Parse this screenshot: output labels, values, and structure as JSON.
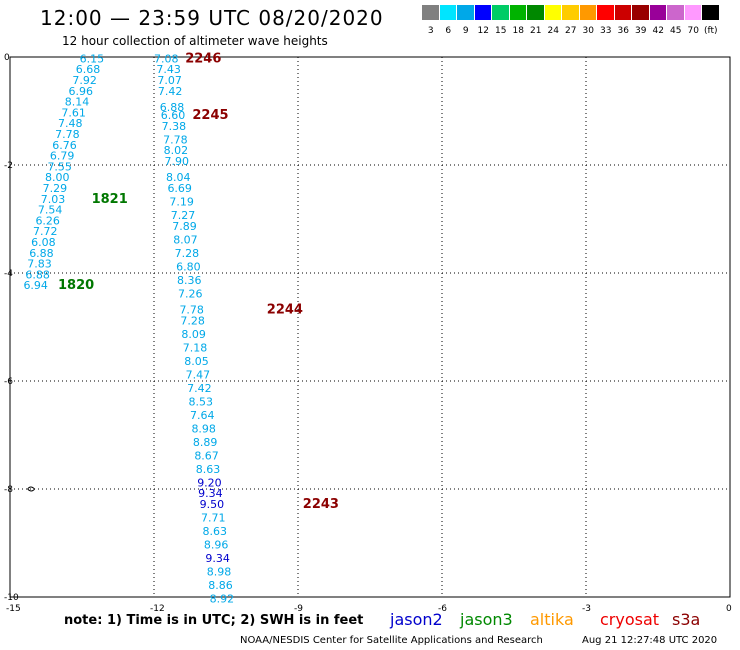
{
  "title": "12:00 — 23:59 UTC 08/20/2020",
  "subtitle": "12 hour collection of altimeter wave heights",
  "colorbar": {
    "labels": [
      "3",
      "6",
      "9",
      "12",
      "15",
      "18",
      "21",
      "24",
      "27",
      "30",
      "33",
      "36",
      "39",
      "42",
      "45",
      "70",
      "(ft)"
    ],
    "colors": [
      "#808080",
      "#00e5ff",
      "#00a8e8",
      "#0000ff",
      "#00cc66",
      "#00b300",
      "#008800",
      "#ffff00",
      "#ffcc00",
      "#ff9900",
      "#ff0000",
      "#cc0000",
      "#990000",
      "#990099",
      "#cc66cc",
      "#ff99ff",
      "#000000"
    ]
  },
  "map": {
    "xlim": [
      -15,
      0
    ],
    "ylim": [
      -10,
      0
    ],
    "x_ticks": [
      "-15",
      "-12",
      "-9",
      "-6",
      "-3",
      "0"
    ],
    "y_ticks": [
      "0",
      "-2",
      "-4",
      "-6",
      "-8",
      "-10"
    ]
  },
  "chart_data": {
    "type": "scatter",
    "xlim": [
      -15,
      0
    ],
    "ylim": [
      -10,
      0
    ],
    "grid": true,
    "passes": [
      {
        "id": "2246",
        "label_color": "#8b0000",
        "label_lon": -11.35,
        "label_lat": -0.1,
        "points": [
          {
            "lon": -12.0,
            "lat": -0.1,
            "swh": "7.08",
            "color": "#00a8e8"
          },
          {
            "lon": -11.95,
            "lat": -0.3,
            "swh": "7.43",
            "color": "#00a8e8"
          },
          {
            "lon": -11.93,
            "lat": -0.5,
            "swh": "7.07",
            "color": "#00a8e8"
          },
          {
            "lon": -11.92,
            "lat": -0.7,
            "swh": "7.42",
            "color": "#00a8e8"
          },
          {
            "lon": -11.88,
            "lat": -1.0,
            "swh": "6.88",
            "color": "#00a8e8"
          }
        ]
      },
      {
        "id": "2245",
        "label_color": "#8b0000",
        "label_lon": -11.2,
        "label_lat": -1.15,
        "points": [
          {
            "lon": -11.86,
            "lat": -1.15,
            "swh": "6.60",
            "color": "#00a8e8"
          },
          {
            "lon": -11.84,
            "lat": -1.35,
            "swh": "7.38",
            "color": "#00a8e8"
          },
          {
            "lon": -11.81,
            "lat": -1.6,
            "swh": "7.78",
            "color": "#00a8e8"
          },
          {
            "lon": -11.8,
            "lat": -1.8,
            "swh": "8.02",
            "color": "#00a8e8"
          },
          {
            "lon": -11.78,
            "lat": -2.0,
            "swh": "7.90",
            "color": "#00a8e8"
          },
          {
            "lon": -11.75,
            "lat": -2.3,
            "swh": "8.04",
            "color": "#00a8e8"
          },
          {
            "lon": -11.72,
            "lat": -2.5,
            "swh": "6.69",
            "color": "#00a8e8"
          },
          {
            "lon": -11.68,
            "lat": -2.75,
            "swh": "7.19",
            "color": "#00a8e8"
          },
          {
            "lon": -11.65,
            "lat": -3.0,
            "swh": "7.27",
            "color": "#00a8e8"
          },
          {
            "lon": -11.62,
            "lat": -3.2,
            "swh": "7.89",
            "color": "#00a8e8"
          },
          {
            "lon": -11.6,
            "lat": -3.45,
            "swh": "8.07",
            "color": "#00a8e8"
          },
          {
            "lon": -11.57,
            "lat": -3.7,
            "swh": "7.28",
            "color": "#00a8e8"
          },
          {
            "lon": -11.54,
            "lat": -3.95,
            "swh": "6.80",
            "color": "#00a8e8"
          },
          {
            "lon": -11.52,
            "lat": -4.2,
            "swh": "8.36",
            "color": "#00a8e8"
          },
          {
            "lon": -11.5,
            "lat": -4.45,
            "swh": "7.26",
            "color": "#00a8e8"
          }
        ]
      },
      {
        "id": "2244",
        "label_color": "#8b0000",
        "label_lon": -9.65,
        "label_lat": -4.75,
        "points": [
          {
            "lon": -11.47,
            "lat": -4.75,
            "swh": "7.78",
            "color": "#00a8e8"
          },
          {
            "lon": -11.45,
            "lat": -4.95,
            "swh": "7.28",
            "color": "#00a8e8"
          },
          {
            "lon": -11.43,
            "lat": -5.2,
            "swh": "8.09",
            "color": "#00a8e8"
          },
          {
            "lon": -11.4,
            "lat": -5.45,
            "swh": "7.18",
            "color": "#00a8e8"
          },
          {
            "lon": -11.37,
            "lat": -5.7,
            "swh": "8.05",
            "color": "#00a8e8"
          },
          {
            "lon": -11.34,
            "lat": -5.95,
            "swh": "7.47",
            "color": "#00a8e8"
          },
          {
            "lon": -11.31,
            "lat": -6.2,
            "swh": "7.42",
            "color": "#00a8e8"
          },
          {
            "lon": -11.28,
            "lat": -6.45,
            "swh": "8.53",
            "color": "#00a8e8"
          },
          {
            "lon": -11.25,
            "lat": -6.7,
            "swh": "7.64",
            "color": "#00a8e8"
          },
          {
            "lon": -11.22,
            "lat": -6.95,
            "swh": "8.98",
            "color": "#00a8e8"
          },
          {
            "lon": -11.19,
            "lat": -7.2,
            "swh": "8.89",
            "color": "#00a8e8"
          },
          {
            "lon": -11.16,
            "lat": -7.45,
            "swh": "8.67",
            "color": "#00a8e8"
          },
          {
            "lon": -11.13,
            "lat": -7.7,
            "swh": "8.63",
            "color": "#00a8e8"
          },
          {
            "lon": -11.1,
            "lat": -7.95,
            "swh": "9.20",
            "color": "#0000cc"
          },
          {
            "lon": -11.08,
            "lat": -8.15,
            "swh": "9.34",
            "color": "#0000cc"
          }
        ]
      },
      {
        "id": "2243",
        "label_color": "#8b0000",
        "label_lon": -8.9,
        "label_lat": -8.35,
        "points": [
          {
            "lon": -11.05,
            "lat": -8.35,
            "swh": "9.50",
            "color": "#0000cc"
          },
          {
            "lon": -11.02,
            "lat": -8.6,
            "swh": "7.71",
            "color": "#00a8e8"
          },
          {
            "lon": -10.99,
            "lat": -8.85,
            "swh": "8.63",
            "color": "#00a8e8"
          },
          {
            "lon": -10.96,
            "lat": -9.1,
            "swh": "8.96",
            "color": "#00a8e8"
          },
          {
            "lon": -10.93,
            "lat": -9.35,
            "swh": "9.34",
            "color": "#0000cc"
          },
          {
            "lon": -10.9,
            "lat": -9.6,
            "swh": "8.98",
            "color": "#00a8e8"
          },
          {
            "lon": -10.87,
            "lat": -9.85,
            "swh": "8.86",
            "color": "#00a8e8"
          },
          {
            "lon": -10.84,
            "lat": -10.1,
            "swh": "8.92",
            "color": "#00a8e8"
          }
        ]
      },
      {
        "id": "1821",
        "label_color": "#007700",
        "label_lon": -13.3,
        "label_lat": -2.7,
        "points": [
          {
            "lon": -13.55,
            "lat": -0.1,
            "swh": "6.15",
            "color": "#00a8e8"
          },
          {
            "lon": -13.63,
            "lat": -0.3,
            "swh": "6.68",
            "color": "#00a8e8"
          },
          {
            "lon": -13.7,
            "lat": -0.5,
            "swh": "7.92",
            "color": "#00a8e8"
          },
          {
            "lon": -13.78,
            "lat": -0.7,
            "swh": "6.96",
            "color": "#00a8e8"
          },
          {
            "lon": -13.86,
            "lat": -0.9,
            "swh": "8.14",
            "color": "#00a8e8"
          },
          {
            "lon": -13.93,
            "lat": -1.1,
            "swh": "7.61",
            "color": "#00a8e8"
          },
          {
            "lon": -14.0,
            "lat": -1.3,
            "swh": "7.48",
            "color": "#00a8e8"
          },
          {
            "lon": -14.06,
            "lat": -1.5,
            "swh": "7.78",
            "color": "#00a8e8"
          },
          {
            "lon": -14.12,
            "lat": -1.7,
            "swh": "6.76",
            "color": "#00a8e8"
          },
          {
            "lon": -14.17,
            "lat": -1.9,
            "swh": "6.79",
            "color": "#00a8e8"
          },
          {
            "lon": -14.22,
            "lat": -2.1,
            "swh": "7.55",
            "color": "#00a8e8"
          },
          {
            "lon": -14.27,
            "lat": -2.3,
            "swh": "8.00",
            "color": "#00a8e8"
          },
          {
            "lon": -14.32,
            "lat": -2.5,
            "swh": "7.29",
            "color": "#00a8e8"
          },
          {
            "lon": -14.36,
            "lat": -2.7,
            "swh": "7.03",
            "color": "#00a8e8"
          }
        ]
      },
      {
        "id": "1820",
        "label_color": "#007700",
        "label_lon": -14.0,
        "label_lat": -4.3,
        "points": [
          {
            "lon": -14.42,
            "lat": -2.9,
            "swh": "7.54",
            "color": "#00a8e8"
          },
          {
            "lon": -14.47,
            "lat": -3.1,
            "swh": "6.26",
            "color": "#00a8e8"
          },
          {
            "lon": -14.52,
            "lat": -3.3,
            "swh": "7.72",
            "color": "#00a8e8"
          },
          {
            "lon": -14.56,
            "lat": -3.5,
            "swh": "6.08",
            "color": "#00a8e8"
          },
          {
            "lon": -14.6,
            "lat": -3.7,
            "swh": "6.88",
            "color": "#00a8e8"
          },
          {
            "lon": -14.64,
            "lat": -3.9,
            "swh": "7.83",
            "color": "#00a8e8"
          },
          {
            "lon": -14.68,
            "lat": -4.1,
            "swh": "6.88",
            "color": "#00a8e8"
          },
          {
            "lon": -14.72,
            "lat": -4.3,
            "swh": "6.94",
            "color": "#00a8e8"
          }
        ]
      }
    ],
    "coast_marker": {
      "lon": -14.55,
      "lat": -8.0
    }
  },
  "note": "note:  1) Time is in UTC;  2) SWH is in feet",
  "satellites": [
    {
      "name": "jason2",
      "color": "#0000cc"
    },
    {
      "name": "jason3",
      "color": "#008800"
    },
    {
      "name": "altika",
      "color": "#ff9900"
    },
    {
      "name": "cryosat",
      "color": "#ee0000"
    },
    {
      "name": "s3a",
      "color": "#8b0000"
    }
  ],
  "credit": "NOAA/NESDIS Center for Satellite Applications and Research",
  "timestamp": "Aug 21 12:27:48 UTC 2020"
}
